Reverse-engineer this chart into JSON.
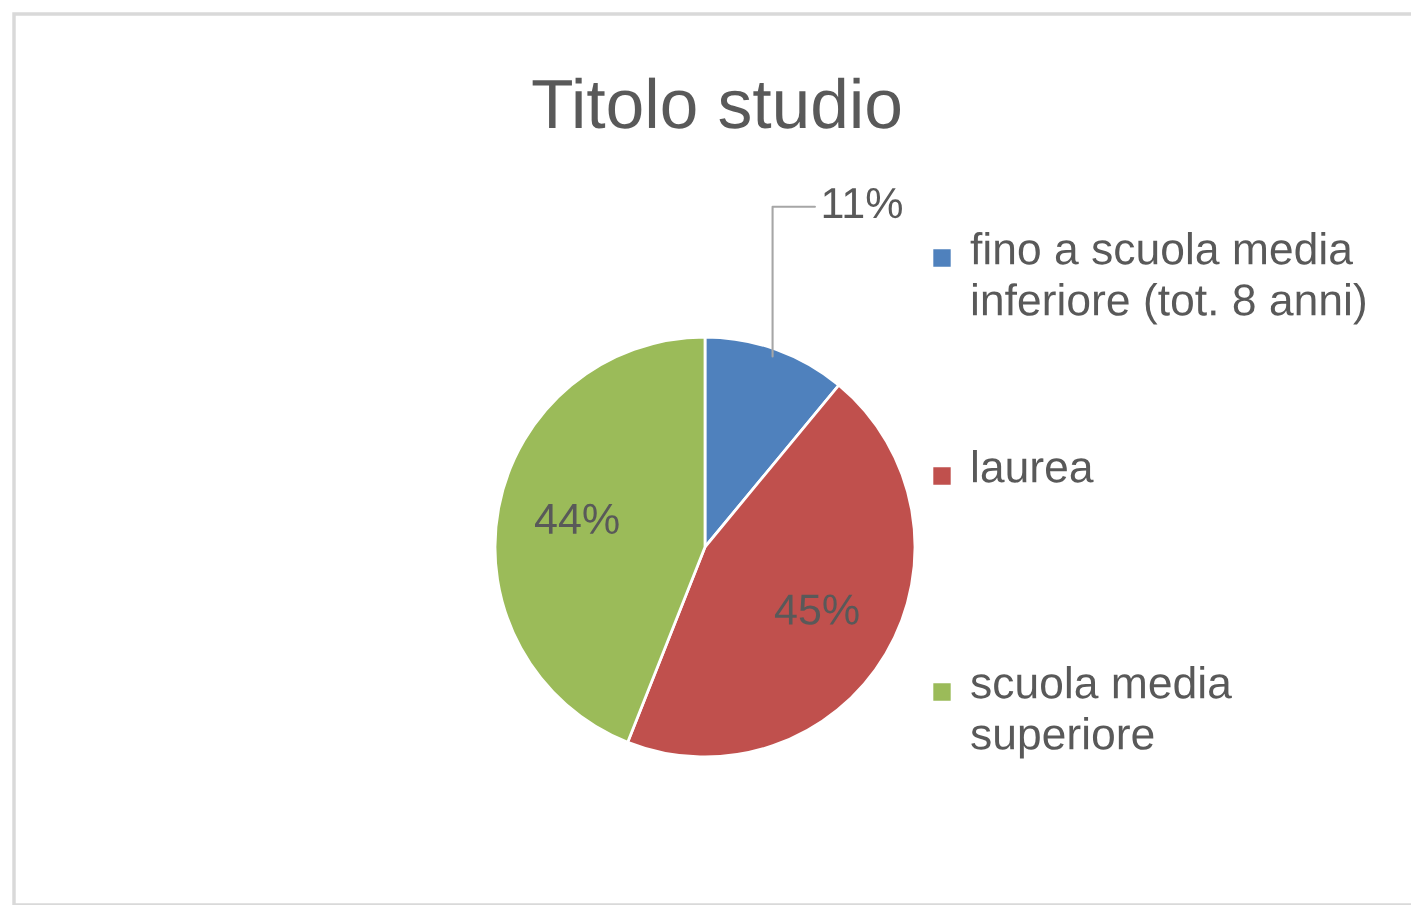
{
  "chart_data": {
    "type": "pie",
    "title": "Titolo studio",
    "categories": [
      "fino a scuola media inferiore (tot. 8 anni)",
      "laurea",
      "scuola media superiore"
    ],
    "values": [
      11,
      45,
      44
    ],
    "colors": [
      "#4f81bd",
      "#c0504d",
      "#9bbb59"
    ],
    "value_labels": [
      "11%",
      "45%",
      "44%"
    ],
    "legend": "right"
  }
}
